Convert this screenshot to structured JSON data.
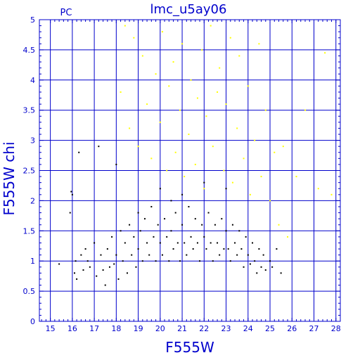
{
  "chart_data": {
    "type": "scatter",
    "title": "lmc_u5ay06",
    "corner_label": "PC",
    "xlabel": "F555W",
    "ylabel": "F555W chi",
    "xlim": [
      14.5,
      28.2
    ],
    "ylim": [
      0,
      5
    ],
    "grid": true,
    "x_ticks": [
      "15",
      "16",
      "17",
      "18",
      "19",
      "20",
      "21",
      "22",
      "23",
      "24",
      "25",
      "26",
      "27",
      "28"
    ],
    "y_ticks": [
      "0",
      "0.5",
      "1",
      "1.5",
      "2",
      "2.5",
      "3",
      "3.5",
      "4",
      "4.5",
      "5"
    ],
    "colors": {
      "axis": "#0000cc",
      "grid": "#0000cc",
      "series_black": "#000000",
      "series_yellow": "#ffff00"
    },
    "series": [
      {
        "color": "#000000",
        "values": [
          [
            15.4,
            0.95
          ],
          [
            15.9,
            1.8
          ],
          [
            15.95,
            2.15
          ],
          [
            16.0,
            2.1
          ],
          [
            16.1,
            0.8
          ],
          [
            16.15,
            1.0
          ],
          [
            16.2,
            0.7
          ],
          [
            16.3,
            2.8
          ],
          [
            16.4,
            1.1
          ],
          [
            16.5,
            0.85
          ],
          [
            16.6,
            1.2
          ],
          [
            16.7,
            1.0
          ],
          [
            16.8,
            0.9
          ],
          [
            17.0,
            1.3
          ],
          [
            17.1,
            0.75
          ],
          [
            17.2,
            2.9
          ],
          [
            17.3,
            1.1
          ],
          [
            17.4,
            0.85
          ],
          [
            17.5,
            0.6
          ],
          [
            17.6,
            1.2
          ],
          [
            17.7,
            0.9
          ],
          [
            17.8,
            1.4
          ],
          [
            17.9,
            0.95
          ],
          [
            18.0,
            2.6
          ],
          [
            18.0,
            1.1
          ],
          [
            18.1,
            0.7
          ],
          [
            18.2,
            1.5
          ],
          [
            18.3,
            1.0
          ],
          [
            18.4,
            1.3
          ],
          [
            18.5,
            0.8
          ],
          [
            18.6,
            1.6
          ],
          [
            18.7,
            1.1
          ],
          [
            18.8,
            1.4
          ],
          [
            18.9,
            0.9
          ],
          [
            19.0,
            1.8
          ],
          [
            19.0,
            1.2
          ],
          [
            19.1,
            1.5
          ],
          [
            19.2,
            1.0
          ],
          [
            19.3,
            1.7
          ],
          [
            19.4,
            1.3
          ],
          [
            19.5,
            1.1
          ],
          [
            19.6,
            1.9
          ],
          [
            19.7,
            1.4
          ],
          [
            19.8,
            1.0
          ],
          [
            19.9,
            1.6
          ],
          [
            20.0,
            2.2
          ],
          [
            20.0,
            1.3
          ],
          [
            20.1,
            1.1
          ],
          [
            20.2,
            1.7
          ],
          [
            20.3,
            1.4
          ],
          [
            20.4,
            1.0
          ],
          [
            20.5,
            2.0
          ],
          [
            20.5,
            1.5
          ],
          [
            20.6,
            1.2
          ],
          [
            20.7,
            1.8
          ],
          [
            20.8,
            1.3
          ],
          [
            20.9,
            1.0
          ],
          [
            21.0,
            2.1
          ],
          [
            21.0,
            1.6
          ],
          [
            21.1,
            1.3
          ],
          [
            21.2,
            1.1
          ],
          [
            21.3,
            1.9
          ],
          [
            21.4,
            1.4
          ],
          [
            21.5,
            1.2
          ],
          [
            21.6,
            1.7
          ],
          [
            21.7,
            1.3
          ],
          [
            21.8,
            1.0
          ],
          [
            21.9,
            1.6
          ],
          [
            22.0,
            2.3
          ],
          [
            22.0,
            1.4
          ],
          [
            22.1,
            1.2
          ],
          [
            22.2,
            1.8
          ],
          [
            22.3,
            1.3
          ],
          [
            22.4,
            1.0
          ],
          [
            22.5,
            1.6
          ],
          [
            22.6,
            1.3
          ],
          [
            22.7,
            1.1
          ],
          [
            22.8,
            1.7
          ],
          [
            22.9,
            1.2
          ],
          [
            23.0,
            2.2
          ],
          [
            23.0,
            1.5
          ],
          [
            23.1,
            1.2
          ],
          [
            23.2,
            1.0
          ],
          [
            23.3,
            1.6
          ],
          [
            23.4,
            1.3
          ],
          [
            23.5,
            1.1
          ],
          [
            23.6,
            1.5
          ],
          [
            23.7,
            1.2
          ],
          [
            23.8,
            0.9
          ],
          [
            23.9,
            1.4
          ],
          [
            24.0,
            1.1
          ],
          [
            24.1,
            0.95
          ],
          [
            24.2,
            1.3
          ],
          [
            24.3,
            1.0
          ],
          [
            24.4,
            0.8
          ],
          [
            24.5,
            1.2
          ],
          [
            24.6,
            0.9
          ],
          [
            24.7,
            1.1
          ],
          [
            24.8,
            0.85
          ],
          [
            25.0,
            1.0
          ],
          [
            25.1,
            0.9
          ],
          [
            25.3,
            1.2
          ],
          [
            25.5,
            0.8
          ]
        ]
      },
      {
        "color": "#ffff00",
        "values": [
          [
            18.2,
            3.8
          ],
          [
            18.4,
            4.9
          ],
          [
            18.6,
            3.2
          ],
          [
            18.8,
            4.7
          ],
          [
            19.0,
            2.9
          ],
          [
            19.2,
            4.4
          ],
          [
            19.4,
            3.6
          ],
          [
            19.6,
            2.7
          ],
          [
            19.8,
            4.1
          ],
          [
            20.0,
            3.3
          ],
          [
            20.1,
            4.8
          ],
          [
            20.3,
            2.5
          ],
          [
            20.4,
            3.9
          ],
          [
            20.6,
            4.3
          ],
          [
            20.7,
            2.8
          ],
          [
            20.9,
            3.5
          ],
          [
            21.0,
            4.6
          ],
          [
            21.1,
            2.4
          ],
          [
            21.3,
            3.1
          ],
          [
            21.4,
            4.0
          ],
          [
            21.6,
            2.6
          ],
          [
            21.7,
            3.7
          ],
          [
            21.9,
            4.5
          ],
          [
            22.0,
            2.2
          ],
          [
            22.1,
            3.4
          ],
          [
            22.3,
            4.9
          ],
          [
            22.4,
            2.9
          ],
          [
            22.6,
            3.8
          ],
          [
            22.7,
            4.2
          ],
          [
            22.9,
            2.5
          ],
          [
            23.0,
            3.6
          ],
          [
            23.2,
            4.7
          ],
          [
            23.3,
            2.3
          ],
          [
            23.5,
            3.2
          ],
          [
            23.6,
            4.4
          ],
          [
            23.8,
            2.7
          ],
          [
            24.0,
            3.9
          ],
          [
            24.1,
            2.1
          ],
          [
            24.3,
            3.0
          ],
          [
            24.5,
            4.6
          ],
          [
            24.6,
            2.4
          ],
          [
            24.8,
            3.5
          ],
          [
            25.0,
            2.0
          ],
          [
            25.2,
            2.8
          ],
          [
            25.4,
            1.6
          ],
          [
            25.6,
            2.9
          ],
          [
            25.8,
            1.4
          ],
          [
            26.2,
            2.4
          ],
          [
            26.6,
            3.5
          ],
          [
            27.2,
            2.2
          ],
          [
            27.5,
            4.45
          ],
          [
            27.8,
            2.1
          ]
        ]
      }
    ]
  }
}
